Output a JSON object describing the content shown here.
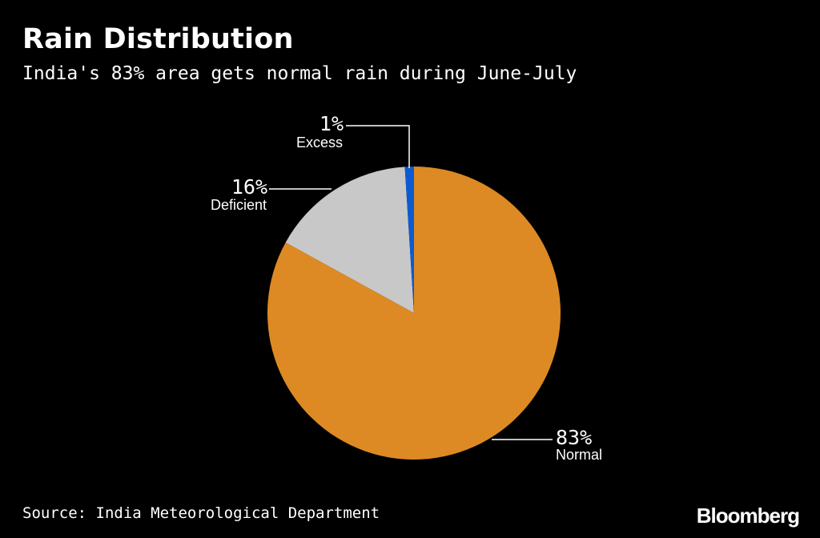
{
  "title": "Rain Distribution",
  "subtitle": "India's 83% area gets normal rain during June-July",
  "source": "Source: India Meteorological Department",
  "brand": "Bloomberg",
  "chart_data": {
    "type": "pie",
    "title": "Rain Distribution",
    "subtitle": "India's 83% area gets normal rain during June-July",
    "categories": [
      "Normal",
      "Deficient",
      "Excess"
    ],
    "values": [
      83,
      16,
      1
    ],
    "labels": [
      "83%",
      "16%",
      "1%"
    ],
    "colors": [
      "#DD8A24",
      "#C8C8C8",
      "#0D5BD1"
    ],
    "legend": "none"
  }
}
